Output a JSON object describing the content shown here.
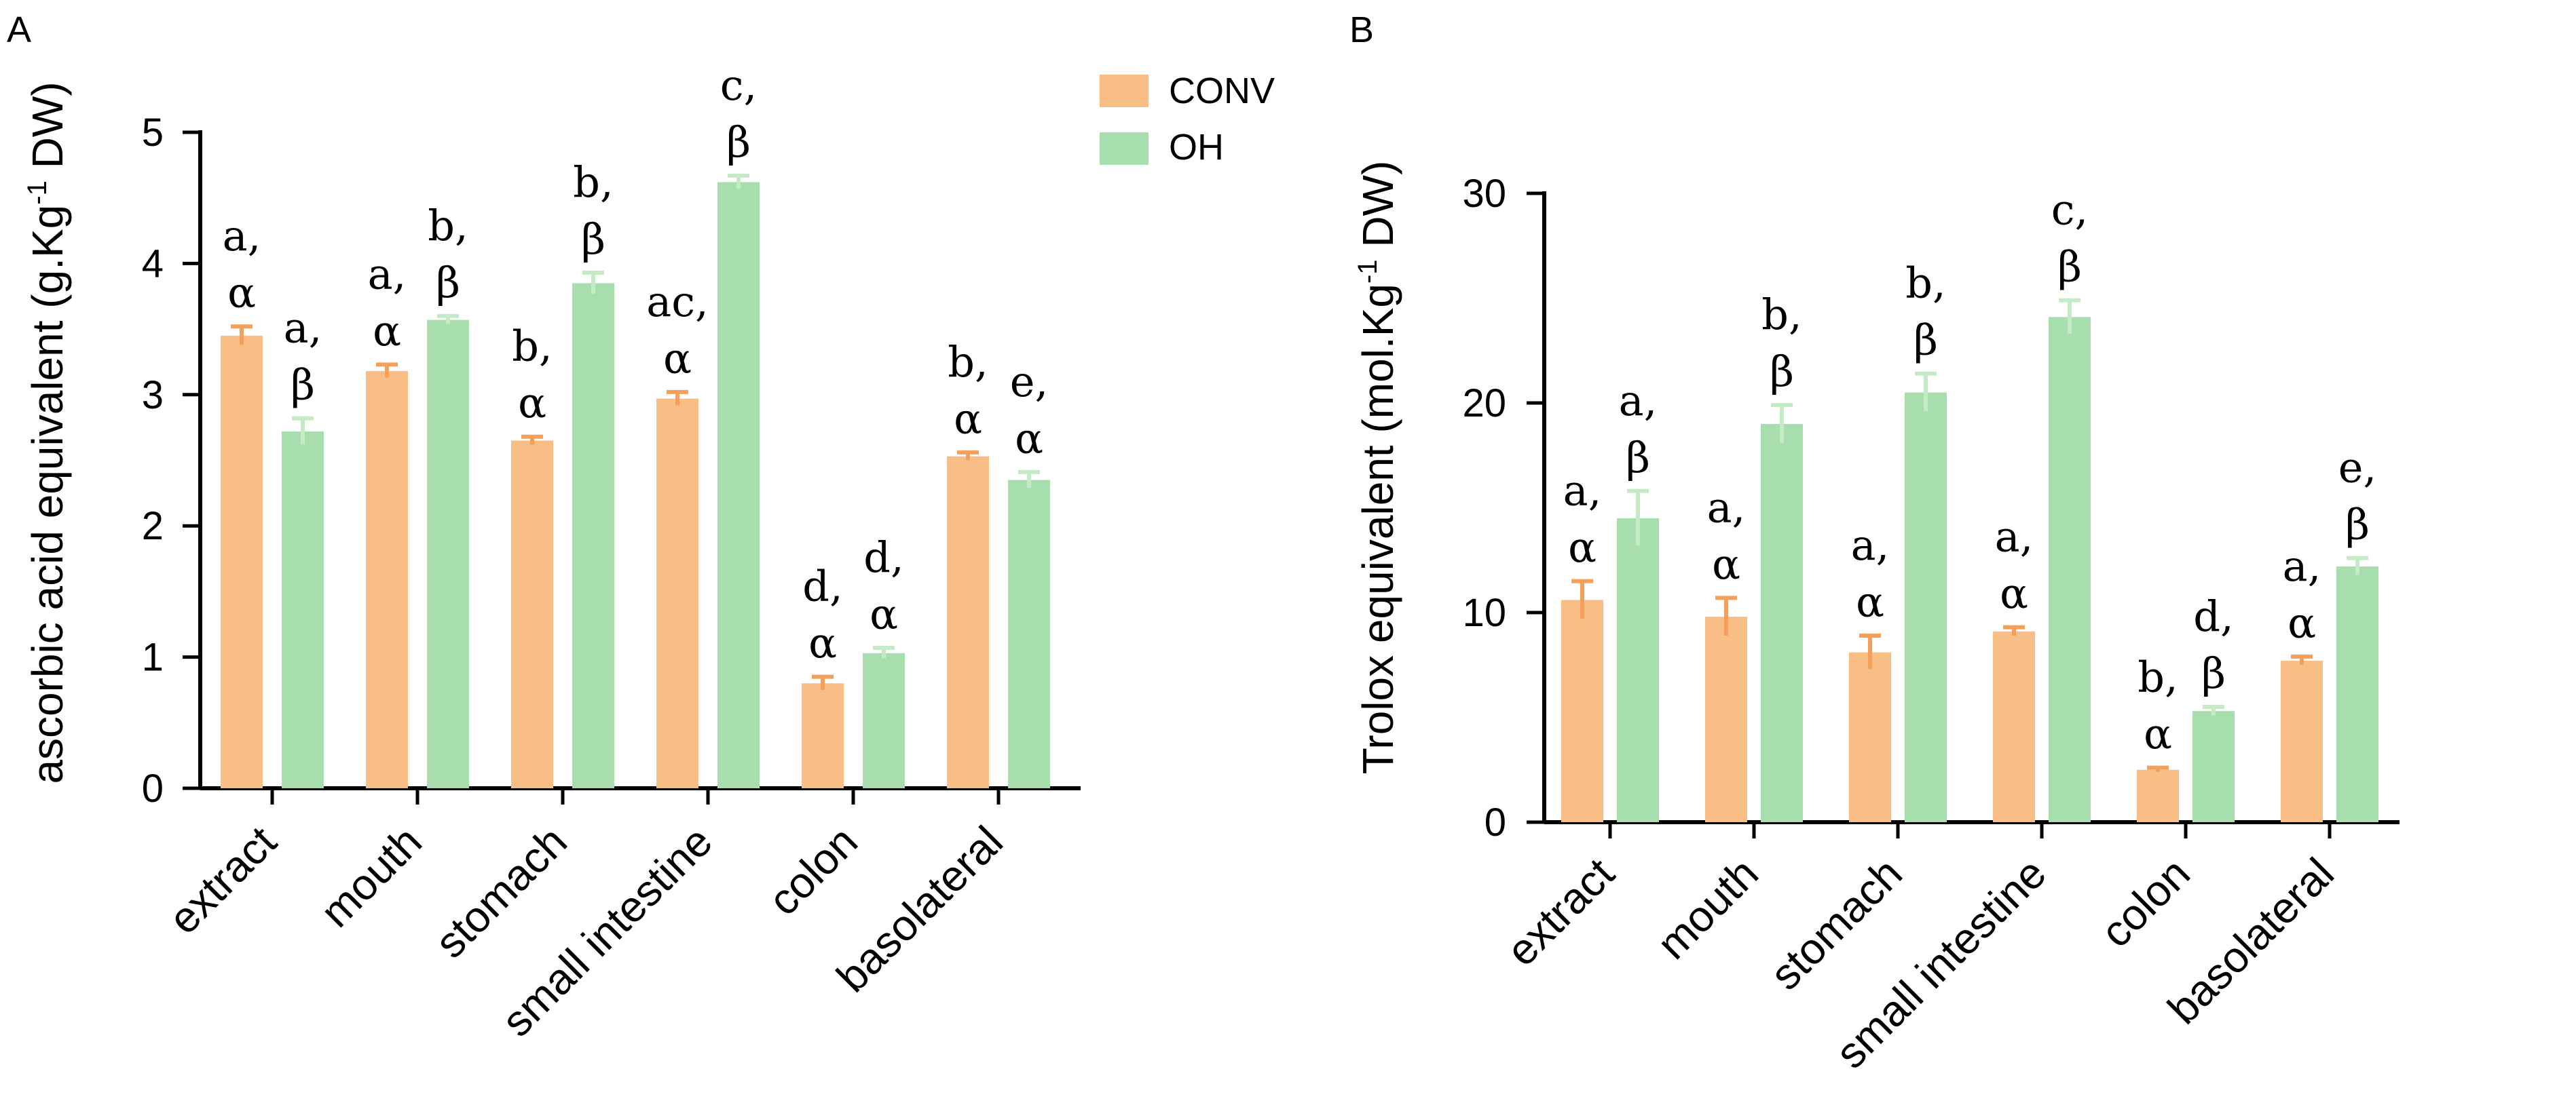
{
  "figure": {
    "legend": [
      {
        "name": "CONV",
        "color": "#F9BE86"
      },
      {
        "name": "OH",
        "color": "#A8DEAE"
      }
    ],
    "error_colors": {
      "CONV": "#F4A05A",
      "OH": "#C4EBC6"
    }
  },
  "chart_data": [
    {
      "panel": "A",
      "type": "bar",
      "ylabel": "ascorbic acid  equivalent (g.Kg",
      "ylabel_sup": "-1",
      "ylabel_end": " DW)",
      "ylim": [
        0,
        5
      ],
      "yticks": [
        0,
        1,
        2,
        3,
        4,
        5
      ],
      "categories": [
        "extract",
        "mouth",
        "stomach",
        "small intestine",
        "colon",
        "basolateral"
      ],
      "series": [
        {
          "name": "CONV",
          "values": [
            3.45,
            3.18,
            2.65,
            2.97,
            0.8,
            2.53
          ],
          "errors": [
            0.07,
            0.05,
            0.03,
            0.05,
            0.05,
            0.03
          ],
          "labels": [
            [
              "a,",
              "α"
            ],
            [
              "a,",
              "α"
            ],
            [
              "b,",
              "α"
            ],
            [
              "ac,",
              "α"
            ],
            [
              "d,",
              "α"
            ],
            [
              "b,",
              "α"
            ]
          ]
        },
        {
          "name": "OH",
          "values": [
            2.72,
            3.57,
            3.85,
            4.62,
            1.03,
            2.35
          ],
          "errors": [
            0.1,
            0.03,
            0.08,
            0.05,
            0.04,
            0.06
          ],
          "labels": [
            [
              "a,",
              "β"
            ],
            [
              "b,",
              "β"
            ],
            [
              "b,",
              "β"
            ],
            [
              "c,",
              "β"
            ],
            [
              "d,",
              "α"
            ],
            [
              "e,",
              "α"
            ]
          ]
        }
      ]
    },
    {
      "panel": "B",
      "type": "bar",
      "ylabel": "Trolox equivalent (mol.Kg",
      "ylabel_sup": "-1",
      "ylabel_end": " DW)",
      "ylim": [
        0,
        30
      ],
      "yticks": [
        0,
        10,
        20,
        30
      ],
      "categories": [
        "extract",
        "mouth",
        "stomach",
        "small intestine",
        "colon",
        "basolateral"
      ],
      "series": [
        {
          "name": "CONV",
          "values": [
            10.6,
            9.8,
            8.1,
            9.1,
            2.5,
            7.7
          ],
          "errors": [
            0.9,
            0.9,
            0.8,
            0.2,
            0.1,
            0.2
          ],
          "labels": [
            [
              "a,",
              "α"
            ],
            [
              "a,",
              "α"
            ],
            [
              "a,",
              "α"
            ],
            [
              "a,",
              "α"
            ],
            [
              "b,",
              "α"
            ],
            [
              "a,",
              "α"
            ]
          ]
        },
        {
          "name": "OH",
          "values": [
            14.5,
            19.0,
            20.5,
            24.1,
            5.3,
            12.2
          ],
          "errors": [
            1.3,
            0.9,
            0.9,
            0.8,
            0.2,
            0.4
          ],
          "labels": [
            [
              "a,",
              "β"
            ],
            [
              "b,",
              "β"
            ],
            [
              "b,",
              "β"
            ],
            [
              "c,",
              "β"
            ],
            [
              "d,",
              "β"
            ],
            [
              "e,",
              "β"
            ]
          ]
        }
      ]
    }
  ]
}
